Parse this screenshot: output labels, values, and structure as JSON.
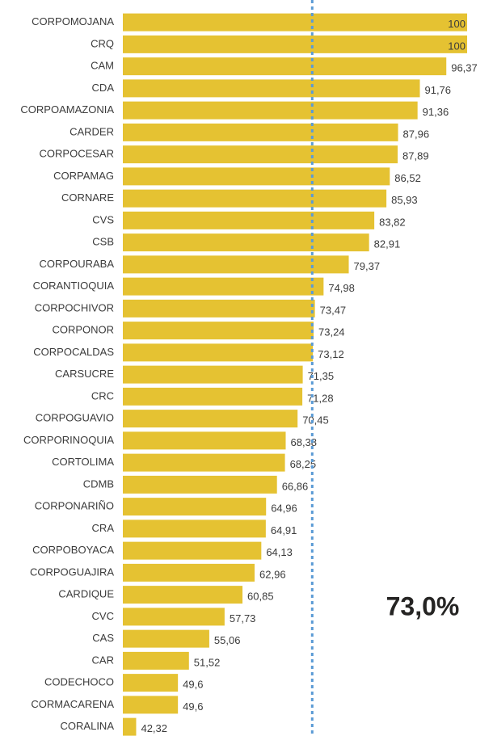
{
  "chart_data": {
    "type": "bar",
    "orientation": "horizontal",
    "color": "#e5c232",
    "categories": [
      "CORPOMOJANA",
      "CRQ",
      "CAM",
      "CDA",
      "CORPOAMAZONIA",
      "CARDER",
      "CORPOCESAR",
      "CORPAMAG",
      "CORNARE",
      "CVS",
      "CSB",
      "CORPOURABA",
      "CORANTIOQUIA",
      "CORPOCHIVOR",
      "CORPONOR",
      "CORPOCALDAS",
      "CARSUCRE",
      "CRC",
      "CORPOGUAVIO",
      "CORPORINOQUIA",
      "CORTOLIMA",
      "CDMB",
      "CORPONARIÑO",
      "CRA",
      "CORPOBOYACA",
      "CORPOGUAJIRA",
      "CARDIQUE",
      "CVC",
      "CAS",
      "CAR",
      "CODECHOCO",
      "CORMACARENA",
      "CORALINA"
    ],
    "values": [
      100,
      100,
      96.37,
      91.76,
      91.36,
      87.96,
      87.89,
      86.52,
      85.93,
      83.82,
      82.91,
      79.37,
      74.98,
      73.47,
      73.24,
      73.12,
      71.35,
      71.28,
      70.45,
      68.38,
      68.25,
      66.86,
      64.96,
      64.91,
      64.13,
      62.96,
      60.85,
      57.73,
      55.06,
      51.52,
      49.6,
      49.6,
      42.32
    ],
    "value_labels": [
      "100",
      "100",
      "96,37",
      "91,76",
      "91,36",
      "87,96",
      "87,89",
      "86,52",
      "85,93",
      "83,82",
      "82,91",
      "79,37",
      "74,98",
      "73,47",
      "73,24",
      "73,12",
      "71,35",
      "71,28",
      "70,45",
      "68,38",
      "68,25",
      "66,86",
      "64,96",
      "64,91",
      "64,13",
      "62,96",
      "60,85",
      "57,73",
      "55,06",
      "51,52",
      "49,6",
      "49,6",
      "42,32"
    ],
    "xlim": [
      40,
      100
    ],
    "reference_line": {
      "value": 73.0,
      "label": "73,0%",
      "color": "#5b9bd5"
    }
  }
}
